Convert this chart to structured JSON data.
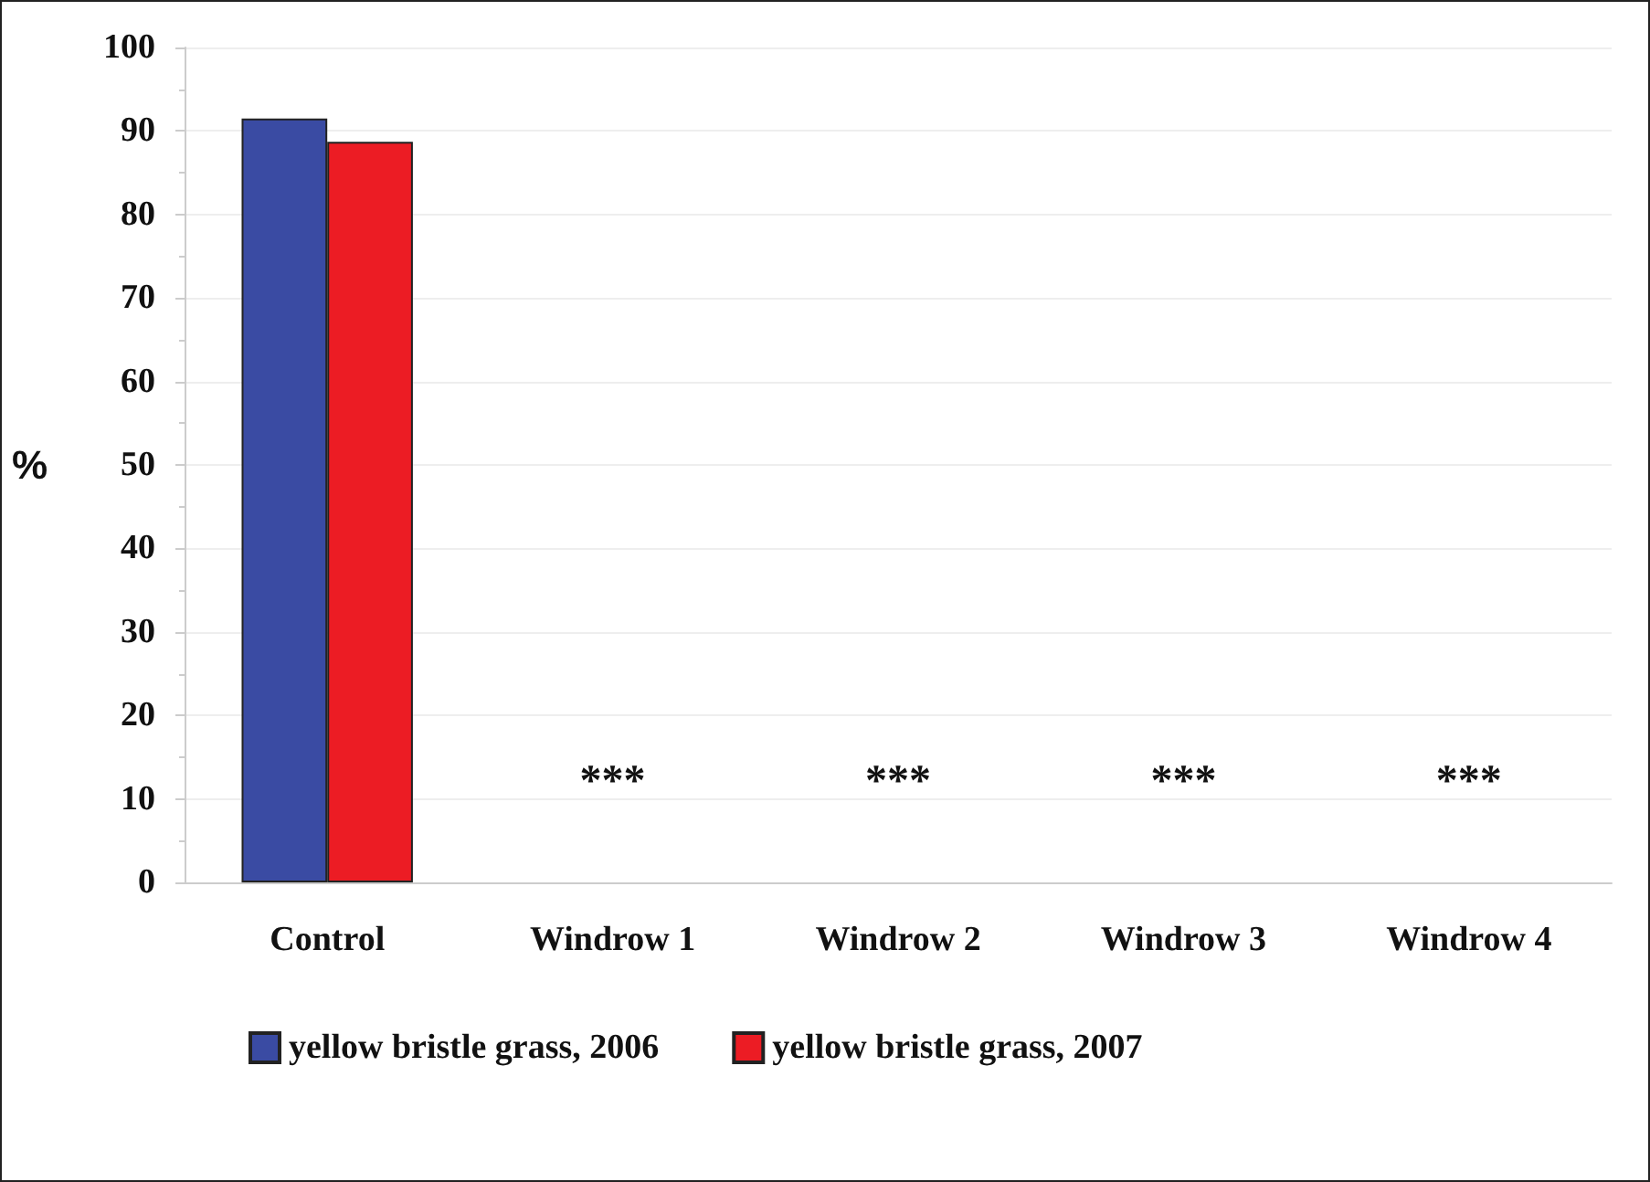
{
  "chart_data": {
    "type": "bar",
    "ylabel": "%",
    "categories": [
      "Control",
      "Windrow 1",
      "Windrow 2",
      "Windrow 3",
      "Windrow 4"
    ],
    "series": [
      {
        "name": "yellow bristle grass, 2006",
        "color": "#3a4ba3",
        "values": [
          91.5,
          0,
          0,
          0,
          0
        ]
      },
      {
        "name": "yellow bristle grass, 2007",
        "color": "#ec1c24",
        "values": [
          88.7,
          0,
          0,
          0,
          0
        ]
      }
    ],
    "ylim": [
      0,
      100
    ],
    "yticks": [
      0,
      10,
      20,
      30,
      40,
      50,
      60,
      70,
      80,
      90,
      100
    ],
    "grid": "y",
    "legend": "bottom",
    "annotations": [
      "***",
      "***",
      "***",
      "***"
    ]
  }
}
